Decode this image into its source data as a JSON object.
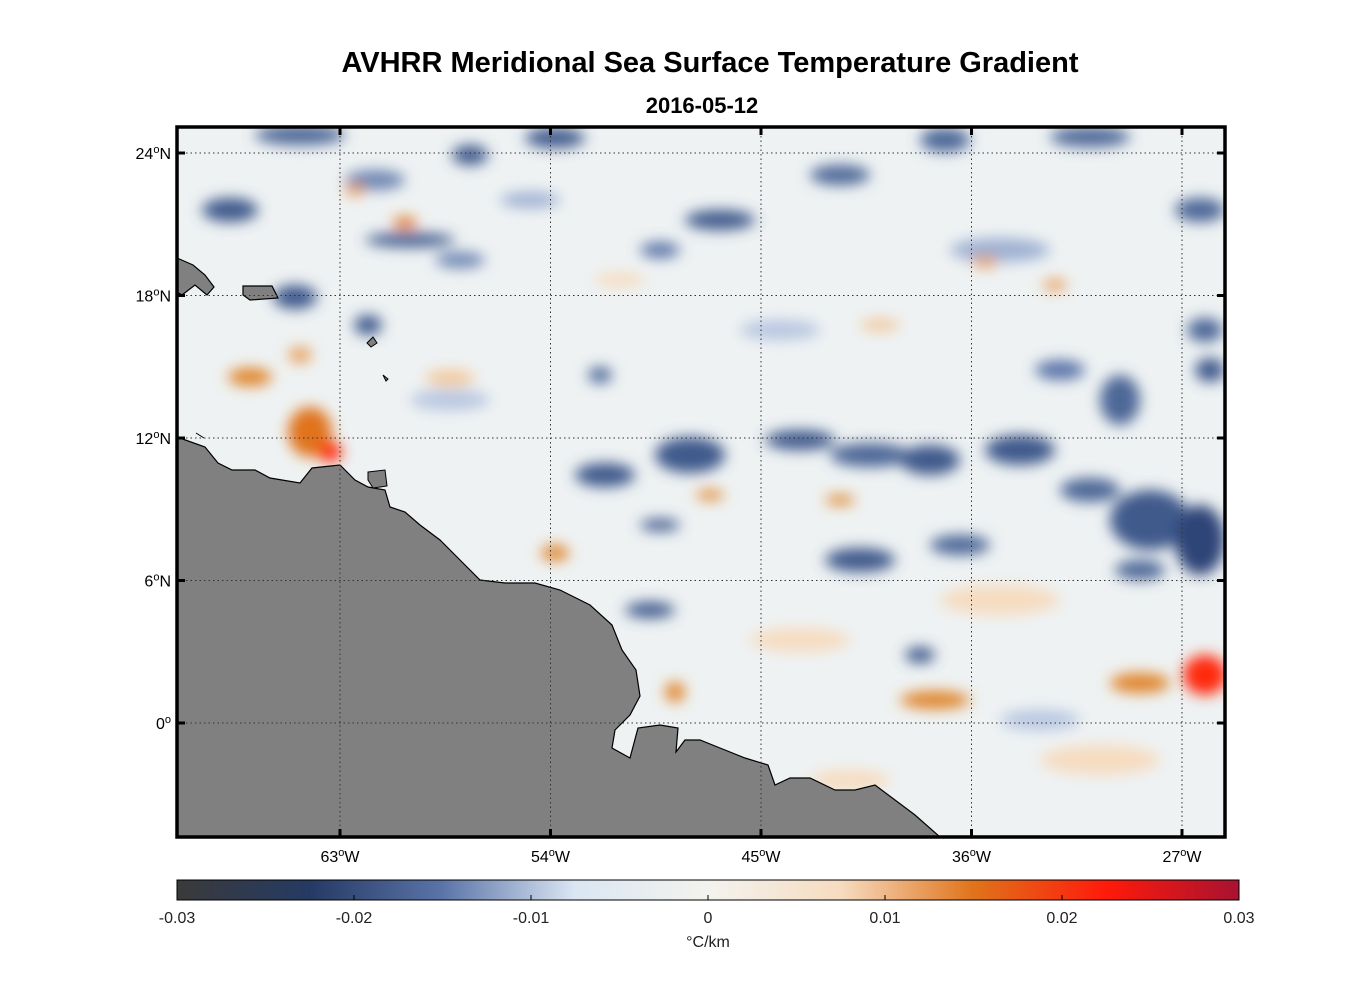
{
  "title": "AVHRR Meridional Sea Surface Temperature Gradient",
  "subtitle": "2016-05-12",
  "map": {
    "lat_ticks": [
      {
        "value": 24,
        "label": "24",
        "hemi": "N"
      },
      {
        "value": 18,
        "label": "18",
        "hemi": "N"
      },
      {
        "value": 12,
        "label": "12",
        "hemi": "N"
      },
      {
        "value": 6,
        "label": "6",
        "hemi": "N"
      },
      {
        "value": 0,
        "label": "0",
        "hemi": ""
      }
    ],
    "lon_ticks": [
      {
        "value": -63,
        "label": "63",
        "hemi": "W"
      },
      {
        "value": -54,
        "label": "54",
        "hemi": "W"
      },
      {
        "value": -45,
        "label": "45",
        "hemi": "W"
      },
      {
        "value": -36,
        "label": "36",
        "hemi": "W"
      },
      {
        "value": -27,
        "label": "27",
        "hemi": "W"
      }
    ],
    "land_color": "#808080",
    "grid": true,
    "grid_style": "dotted"
  },
  "colorbar": {
    "range": [
      -0.03,
      0.03
    ],
    "ticks": [
      {
        "value": -0.03,
        "label": "-0.03"
      },
      {
        "value": -0.02,
        "label": "-0.02"
      },
      {
        "value": -0.01,
        "label": "-0.01"
      },
      {
        "value": 0,
        "label": "0"
      },
      {
        "value": 0.01,
        "label": "0.01"
      },
      {
        "value": 0.02,
        "label": "0.02"
      },
      {
        "value": 0.03,
        "label": "0.03"
      }
    ],
    "unit_label": "°C/km",
    "colors": [
      "#3a3a3a",
      "#253a63",
      "#5b74a8",
      "#dbe6f3",
      "#f3f3ee",
      "#f6dcc0",
      "#e0731b",
      "#ff1a0a",
      "#a81230"
    ]
  }
}
